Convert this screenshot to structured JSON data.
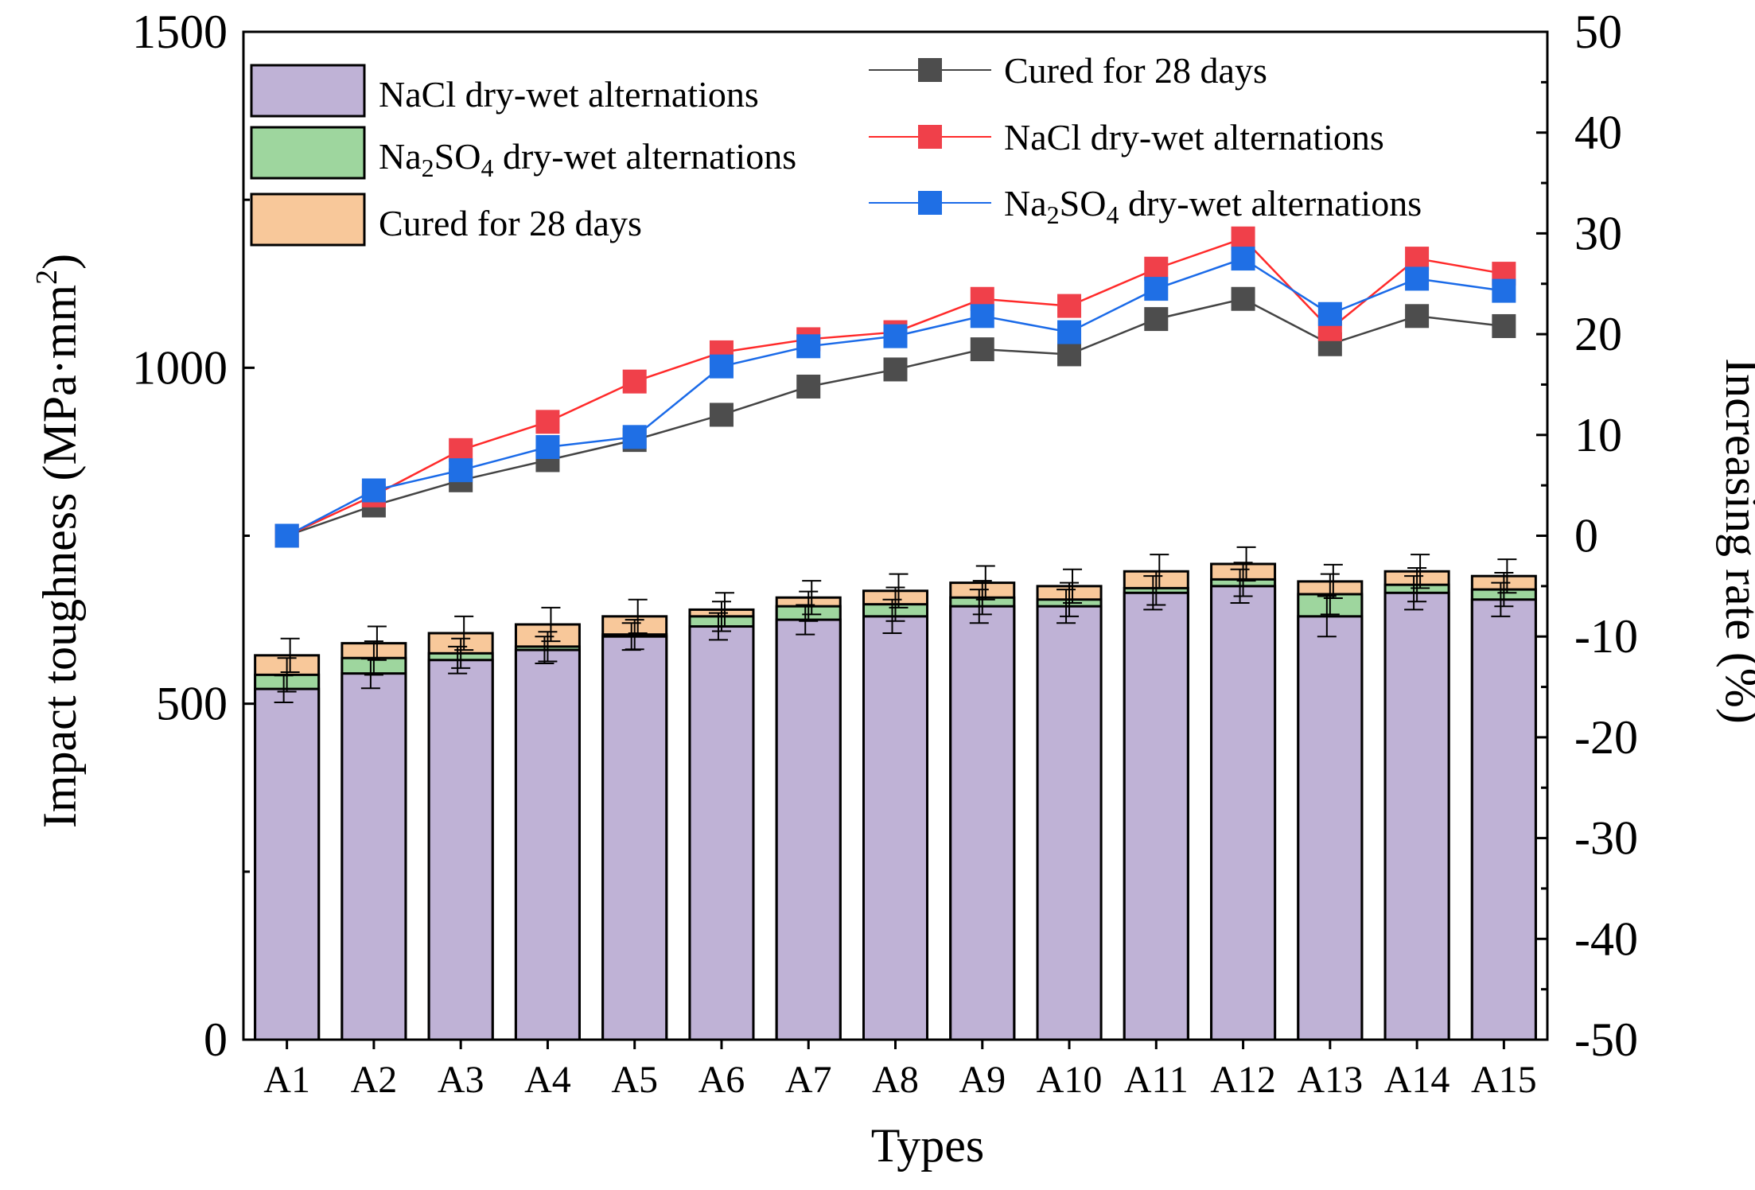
{
  "chart_data": {
    "type": "bar",
    "xlabel": "Types",
    "ylabel": "Impact toughness (MPa·mm²)",
    "ylabel_parts": {
      "main": "Impact toughness (MPa·mm",
      "sup": "2",
      "end": ")"
    },
    "y2label": "Increasing rate (%)",
    "ylim": [
      0,
      1500
    ],
    "y2lim": [
      -50,
      50
    ],
    "yticks": [
      "0",
      "500",
      "1000",
      "1500"
    ],
    "y2ticks": [
      "-50",
      "-40",
      "-30",
      "-20",
      "-10",
      "0",
      "10",
      "20",
      "30",
      "40",
      "50"
    ],
    "categories": [
      "A1",
      "A2",
      "A3",
      "A4",
      "A5",
      "A6",
      "A7",
      "A8",
      "A9",
      "A10",
      "A11",
      "A12",
      "A13",
      "A14",
      "A15"
    ],
    "bar_series": [
      {
        "name": "NaCl dry-wet alternations",
        "color": "#bfb2d6",
        "values": [
          522,
          545,
          565,
          580,
          600,
          615,
          625,
          630,
          645,
          645,
          665,
          675,
          630,
          665,
          655
        ],
        "errors": [
          20,
          22,
          20,
          20,
          20,
          20,
          22,
          25,
          25,
          25,
          25,
          25,
          30,
          25,
          25
        ]
      },
      {
        "name": "Na₂SO₄ dry-wet alternations",
        "name_parts": [
          "Na",
          "2",
          "SO",
          "4",
          " dry-wet alternations"
        ],
        "color": "#9ed69e",
        "values": [
          543,
          568,
          575,
          585,
          603,
          630,
          645,
          648,
          658,
          655,
          672,
          685,
          663,
          677,
          670
        ],
        "errors": [
          25,
          25,
          22,
          22,
          22,
          22,
          22,
          25,
          25,
          25,
          25,
          25,
          30,
          25,
          25
        ]
      },
      {
        "name": "Cured for 28 days",
        "color": "#f8c89a",
        "values": [
          572,
          590,
          605,
          618,
          630,
          640,
          658,
          668,
          680,
          675,
          697,
          708,
          682,
          697,
          690
        ],
        "errors": [
          25,
          25,
          25,
          25,
          25,
          25,
          25,
          25,
          25,
          25,
          25,
          25,
          25,
          25,
          25
        ]
      }
    ],
    "line_series": [
      {
        "name": "Cured for 28 days",
        "color": "#4d4d4d",
        "line_color": "#444444",
        "values": [
          0,
          3,
          5.5,
          7.5,
          9.5,
          12,
          14.8,
          16.5,
          18.5,
          18,
          21.5,
          23.5,
          19,
          21.8,
          20.8
        ]
      },
      {
        "name": "NaCl dry-wet alternations",
        "color": "#f0404a",
        "line_color": "#ff2a2a",
        "values": [
          0,
          4,
          8.5,
          11.3,
          15.3,
          18.2,
          19.5,
          20.2,
          23.5,
          22.8,
          26.5,
          29.5,
          20.5,
          27.5,
          26
        ]
      },
      {
        "name": "Na₂SO₄ dry-wet alternations",
        "name_parts": [
          "Na",
          "2",
          "SO",
          "4",
          " dry-wet alternations"
        ],
        "color": "#1f6fe5",
        "line_color": "#1a6ae8",
        "values": [
          0,
          4.5,
          6.5,
          8.8,
          9.8,
          16.8,
          18.8,
          19.8,
          21.8,
          20.2,
          24.5,
          27.5,
          22,
          25.5,
          24.3
        ]
      }
    ]
  }
}
